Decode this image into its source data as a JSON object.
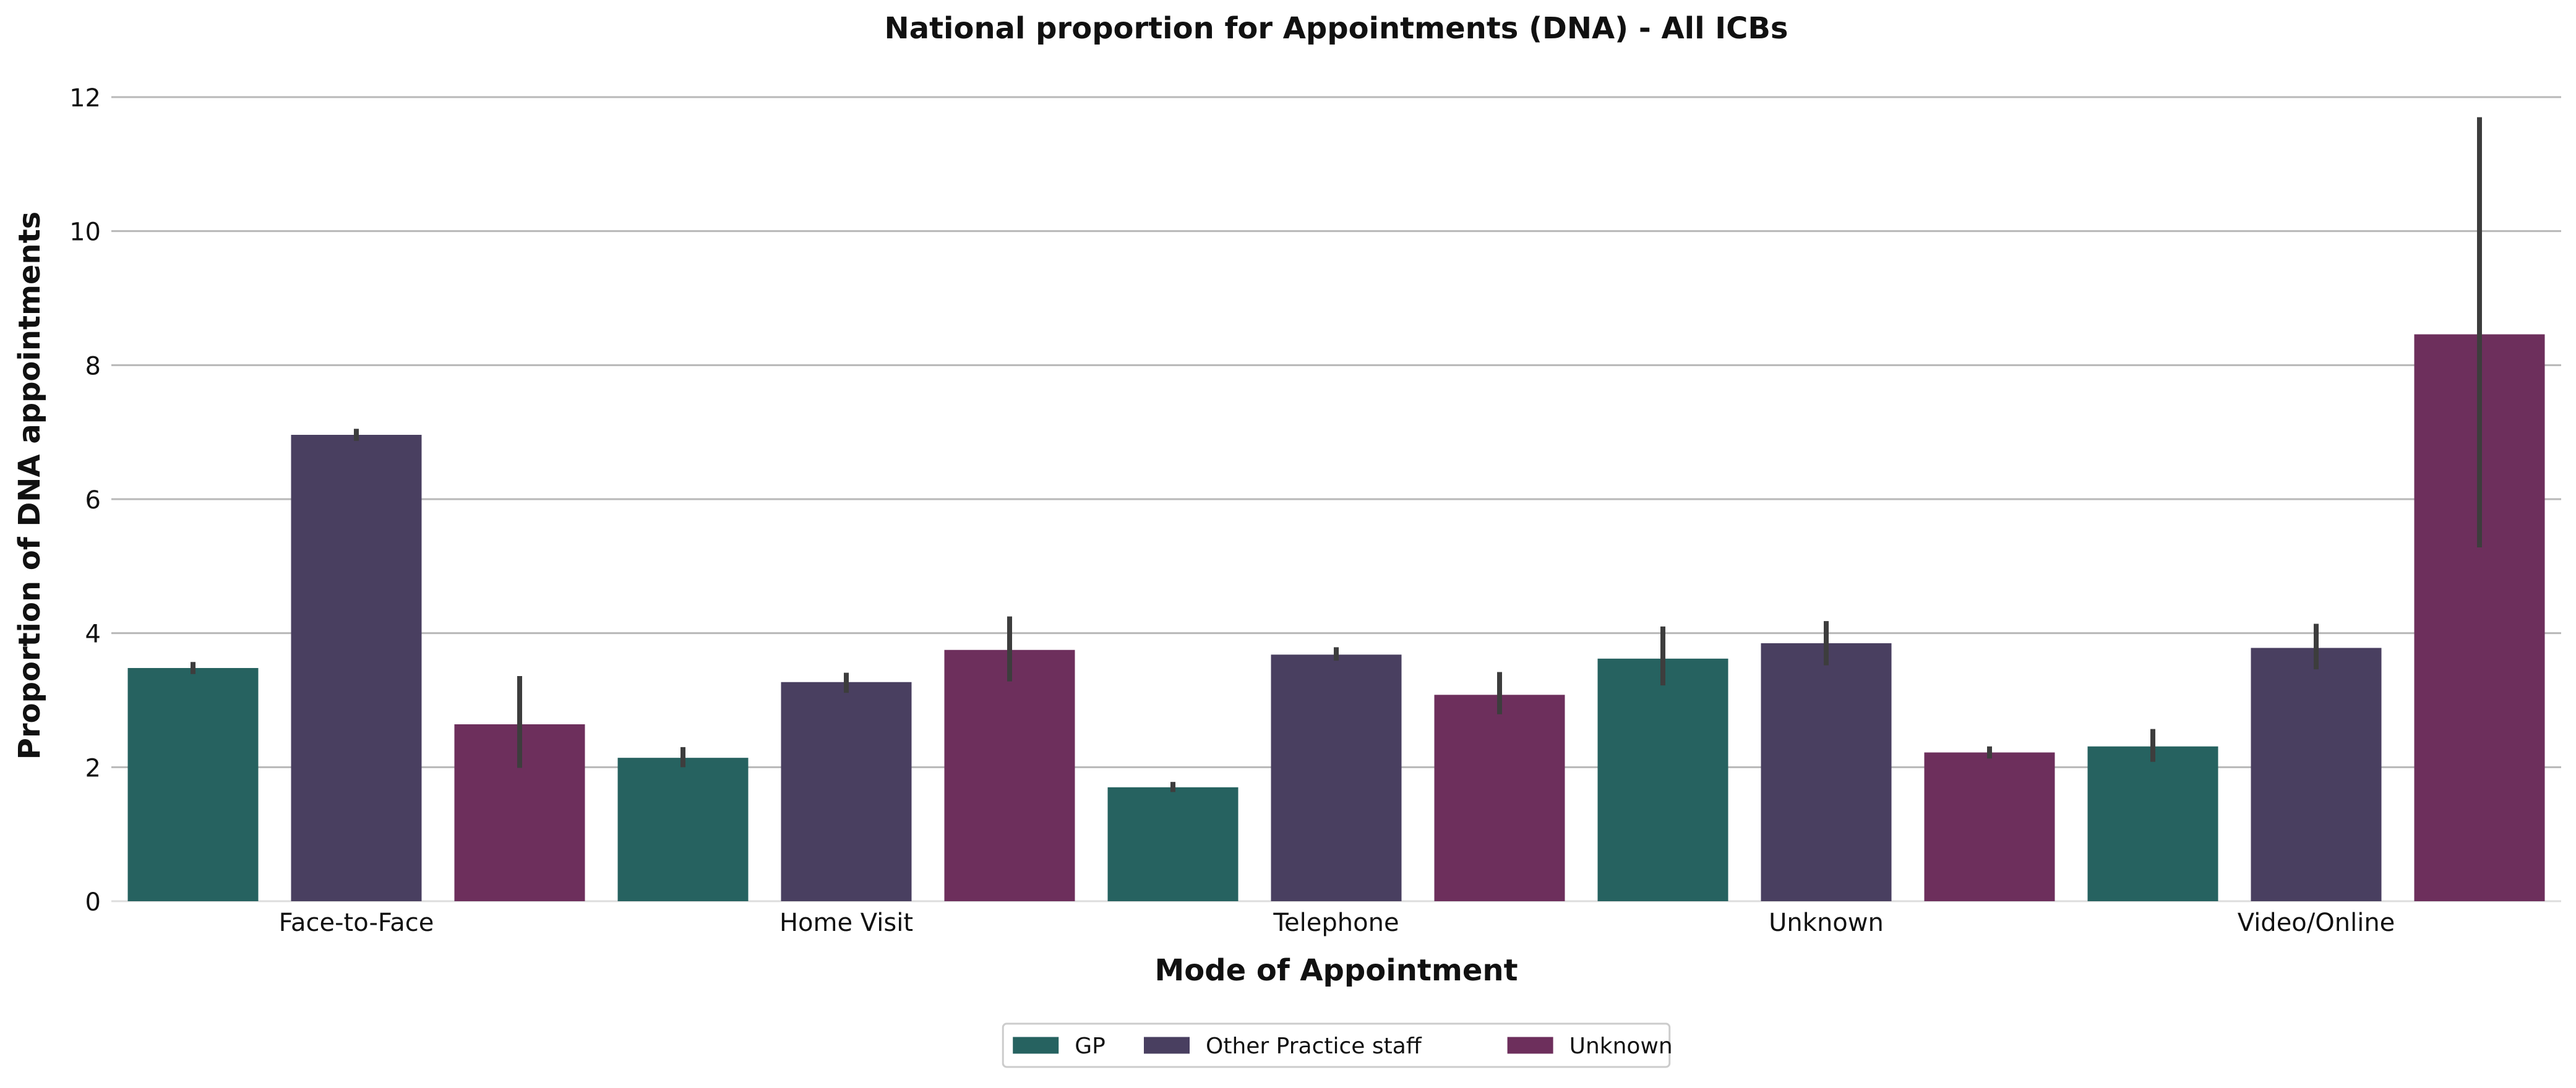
{
  "chart_data": {
    "type": "bar",
    "title": "National proportion for Appointments (DNA) - All ICBs",
    "xlabel": "Mode of Appointment",
    "ylabel": "Proportion of DNA appointments",
    "categories": [
      "Face-to-Face",
      "Home Visit",
      "Telephone",
      "Unknown",
      "Video/Online"
    ],
    "ylim": [
      0,
      12
    ],
    "yticks": [
      0,
      2,
      4,
      6,
      8,
      10,
      12
    ],
    "grid": "horizontal",
    "legend_position": "bottom-center",
    "series": [
      {
        "name": "GP",
        "color": "#266260",
        "values": [
          3.48,
          2.14,
          1.7,
          3.62,
          2.31
        ],
        "error_low": [
          3.39,
          2.0,
          1.63,
          3.22,
          2.08
        ],
        "error_high": [
          3.57,
          2.3,
          1.78,
          4.1,
          2.57
        ]
      },
      {
        "name": "Other Practice staff",
        "color": "#493F60",
        "values": [
          6.96,
          3.27,
          3.68,
          3.85,
          3.78
        ],
        "error_low": [
          6.87,
          3.11,
          3.59,
          3.52,
          3.46
        ],
        "error_high": [
          7.05,
          3.41,
          3.79,
          4.18,
          4.14
        ]
      },
      {
        "name": "Unknown",
        "color": "#6D2F5C",
        "values": [
          2.64,
          3.75,
          3.08,
          2.22,
          8.46
        ],
        "error_low": [
          1.99,
          3.28,
          2.79,
          2.13,
          5.28
        ],
        "error_high": [
          3.36,
          4.25,
          3.42,
          2.31,
          11.7
        ]
      }
    ]
  }
}
